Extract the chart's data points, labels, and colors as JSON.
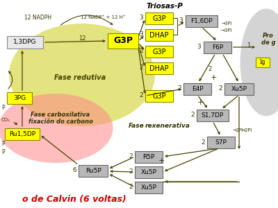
{
  "title_bottom": "o de Calvin (6 voltas)",
  "title_bottom_color": "#cc0000",
  "bg_color": "#ffffff",
  "yellow_box_color": "#ffff00",
  "yellow_box_border": "#888800",
  "gray_box_color": "#b8b8b8",
  "gray_box_border": "#666666",
  "white_box_color": "#e8e8e8",
  "white_box_border": "#888888",
  "arrow_color": "#444400",
  "text_color": "#333300",
  "triosas_label": "Triosas-P",
  "fase_redu_label": "Fase redutiva",
  "fase_carb_label1": "Fase carboxilativa",
  "fase_carb_label2": "fixación do carbono",
  "fase_rexe_label1": "Fase",
  "fase_rexe_label2": "rexenerativa",
  "nadph_label": "12 NADPH",
  "nadp_label": "12 NADP⁺ + 12 H⁺",
  "produ_label1": "Pro",
  "produ_label2": "de g"
}
